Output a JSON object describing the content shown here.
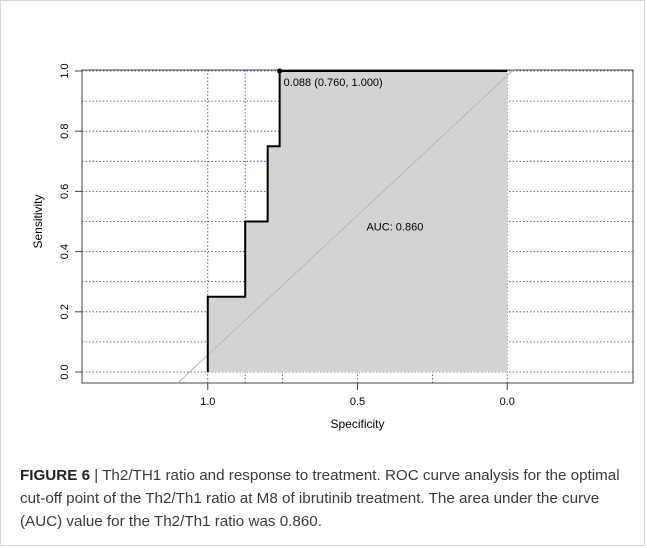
{
  "chart_data": {
    "type": "line",
    "title": "",
    "xlabel": "Specificity",
    "ylabel": "Sensitivity",
    "x_reversed": true,
    "xlim": [
      1.42,
      -0.42
    ],
    "ylim": [
      0,
      1
    ],
    "x_ticks": [
      1.0,
      0.5,
      0.0
    ],
    "x_tick_labels": [
      "1.0",
      "0.5",
      "0.0"
    ],
    "y_ticks": [
      0.0,
      0.2,
      0.4,
      0.6,
      0.8,
      1.0
    ],
    "y_tick_labels": [
      "0.0",
      "0.2",
      "0.4",
      "0.6",
      "0.8",
      "1.0"
    ],
    "grid": true,
    "x_grid": [
      1.0,
      0.875,
      0.75,
      0.5,
      0.25,
      0.0
    ],
    "y_grid": [
      0.0,
      0.1,
      0.2,
      0.3,
      0.4,
      0.5,
      0.6,
      0.7,
      0.8,
      0.9,
      1.0
    ],
    "roc_points": [
      {
        "specificity": 1.0,
        "sensitivity": 0.0
      },
      {
        "specificity": 1.0,
        "sensitivity": 0.25
      },
      {
        "specificity": 0.875,
        "sensitivity": 0.25
      },
      {
        "specificity": 0.875,
        "sensitivity": 0.5
      },
      {
        "specificity": 0.8,
        "sensitivity": 0.5
      },
      {
        "specificity": 0.8,
        "sensitivity": 0.75
      },
      {
        "specificity": 0.76,
        "sensitivity": 0.75
      },
      {
        "specificity": 0.76,
        "sensitivity": 1.0
      },
      {
        "specificity": 0.0,
        "sensitivity": 1.0
      }
    ],
    "optimal_point": {
      "specificity": 0.76,
      "sensitivity": 1.0,
      "label": "0.088 (0.760, 1.000)"
    },
    "auc": 0.86,
    "auc_label": "AUC: 0.860",
    "auc_label_position": {
      "specificity": 0.47,
      "sensitivity": 0.47
    },
    "colors": {
      "fill": "#d3d3d3",
      "curve": "#000000",
      "grid": "#3333dd",
      "diagonal": "#b8b8b8",
      "axis": "#444444"
    }
  },
  "caption": {
    "label": "FIGURE 6",
    "text": " | Th2/TH1 ratio and response to treatment. ROC curve analysis for the optimal cut-off point of the Th2/Th1 ratio at M8 of ibrutinib treatment. The area under the curve (AUC) value for the Th2/Th1 ratio was 0.860."
  }
}
